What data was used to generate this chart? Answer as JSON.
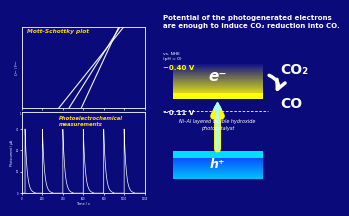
{
  "bg_color": "#0A0A7A",
  "title_text": "Potential of the photogenerated electrons\nare enough to induce CO₂ reduction into CO.",
  "title_color": "#FFFFFF",
  "mott_title": "Mott-Schottky plot",
  "mott_title_color": "#FFD700",
  "photo_label": "Photoelectrochemical\nmeasurements",
  "photo_label_color": "#FFD700",
  "nhe_label": "vs. NHE\n(pH = 0)",
  "v1_label": "−0.40 V",
  "v1_color": "#FFFF00",
  "v2_label": "−0.11 V",
  "v2_color": "#FFFFFF",
  "e_label": "e⁻",
  "h_label": "h⁺",
  "co2_label": "CO₂",
  "co_label": "CO",
  "catalyst_label": "Ni–Al layered double hydroxide\nphotocatalyst",
  "catalyst_color": "#FFFFFF",
  "white": "#FFFFFF",
  "yellow": "#FFFF00",
  "cyan": "#00BFFF"
}
